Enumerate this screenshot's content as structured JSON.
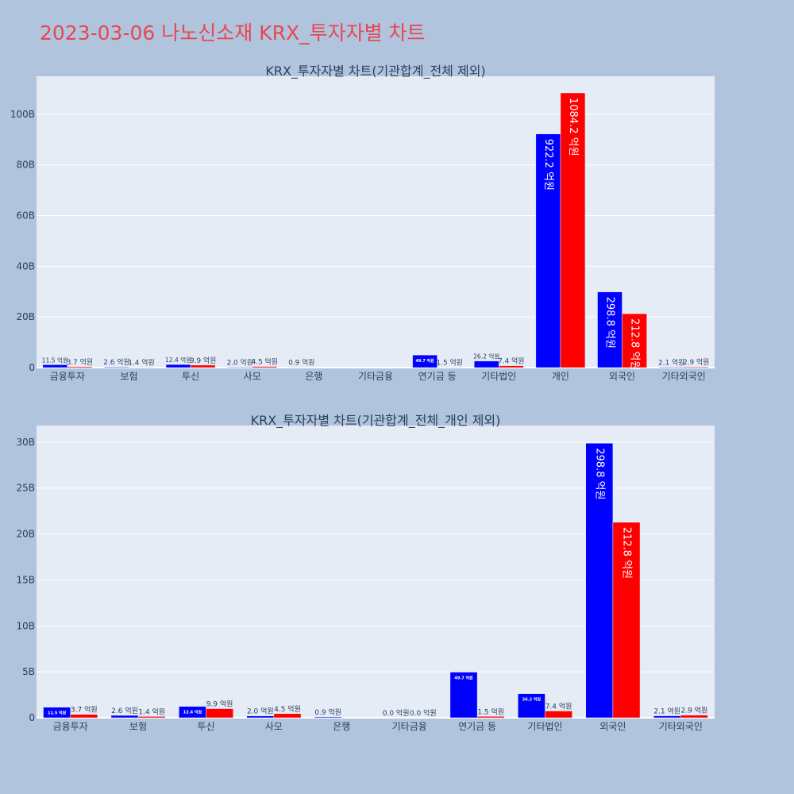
{
  "page": {
    "title": "2023-03-06 나노신소재 KRX_투자자별 차트"
  },
  "colors": {
    "series_a": "#0000ff",
    "series_b": "#ff0000",
    "plot_bg": "#e5ecf6",
    "page_bg": "#b0c4de",
    "title": "#e8474f",
    "text": "#2a3f5f"
  },
  "chart_data": [
    {
      "type": "bar",
      "title": "KRX_투자자별 차트(기관합계_전체 제외)",
      "categories": [
        "금융투자",
        "보험",
        "투신",
        "사모",
        "은행",
        "기타금융",
        "연기금 등",
        "기타법인",
        "개인",
        "외국인",
        "기타외국인"
      ],
      "series": [
        {
          "color": "#0000ff",
          "values": [
            1.15,
            0.26,
            1.24,
            0.2,
            0.09,
            null,
            4.97,
            2.62,
            92.22,
            29.88,
            0.21
          ],
          "labels": [
            "11.5 억원",
            "2.6 억원",
            "12.4 억원",
            "2.0 억원",
            "0.9 억원",
            "",
            "49.7 억원",
            "26.2 억원",
            "922.2 억원",
            "298.8 억원",
            "2.1 억원"
          ]
        },
        {
          "color": "#ff0000",
          "values": [
            0.37,
            0.14,
            0.99,
            0.45,
            null,
            null,
            0.15,
            0.74,
            108.42,
            21.28,
            0.29
          ],
          "labels": [
            "3.7 억원",
            "1.4 억원",
            "9.9 억원",
            "4.5 억원",
            "",
            "",
            "1.5 억원",
            "7.4 억원",
            "1084.2 억원",
            "212.8 억원",
            "2.9 억원"
          ]
        }
      ],
      "ylim": [
        0,
        115
      ],
      "yticks": [
        0,
        20,
        40,
        60,
        80,
        100
      ],
      "ytick_labels": [
        "0",
        "20B",
        "40B",
        "60B",
        "80B",
        "100B"
      ],
      "grid": true,
      "legend": "none"
    },
    {
      "type": "bar",
      "title": "KRX_투자자별 차트(기관합계_전체_개인 제외)",
      "categories": [
        "금융투자",
        "보험",
        "투신",
        "사모",
        "은행",
        "기타금융",
        "연기금 등",
        "기타법인",
        "외국인",
        "기타외국인"
      ],
      "series": [
        {
          "color": "#0000ff",
          "values": [
            1.15,
            0.26,
            1.24,
            0.2,
            0.09,
            0.0,
            4.97,
            2.62,
            29.88,
            0.21
          ],
          "labels": [
            "11.5 억원",
            "2.6 억원",
            "12.4 억원",
            "2.0 억원",
            "0.9 억원",
            "0.0 억원",
            "49.7 억원",
            "26.2 억원",
            "298.8 억원",
            "2.1 억원"
          ]
        },
        {
          "color": "#ff0000",
          "values": [
            0.37,
            0.14,
            0.99,
            0.45,
            null,
            0.0,
            0.15,
            0.74,
            21.28,
            0.29
          ],
          "labels": [
            "3.7 억원",
            "1.4 억원",
            "9.9 억원",
            "4.5 억원",
            "",
            "0.0 억원",
            "1.5 억원",
            "7.4 억원",
            "212.8 억원",
            "2.9 억원"
          ]
        }
      ],
      "ylim": [
        0,
        31.8
      ],
      "yticks": [
        0,
        5,
        10,
        15,
        20,
        25,
        30
      ],
      "ytick_labels": [
        "0",
        "5B",
        "10B",
        "15B",
        "20B",
        "25B",
        "30B"
      ],
      "grid": true,
      "legend": "none"
    }
  ]
}
